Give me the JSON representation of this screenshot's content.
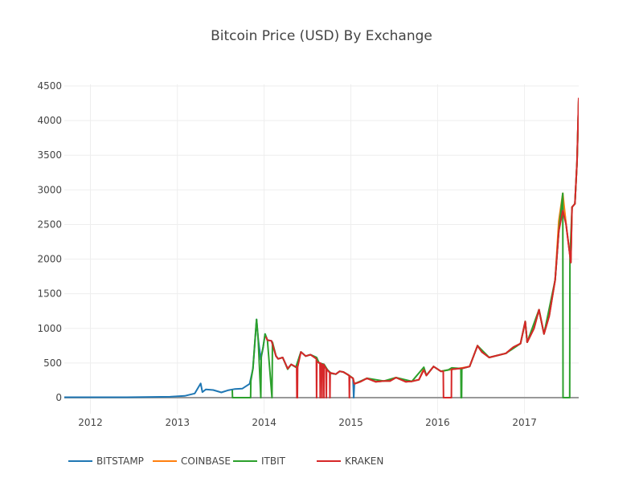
{
  "chart_data": {
    "type": "line",
    "title": "Bitcoin Price (USD) By Exchange",
    "xlabel": "",
    "ylabel": "",
    "xlim": [
      "2011-09-13",
      "2017-08-17"
    ],
    "ylim": [
      -250,
      4500
    ],
    "xticks": [
      "2012",
      "2013",
      "2014",
      "2015",
      "2016",
      "2017"
    ],
    "yticks": [
      0,
      500,
      1000,
      1500,
      2000,
      2500,
      3000,
      3500,
      4000,
      4500
    ],
    "grid": true,
    "legend_position": "bottom",
    "series": [
      {
        "name": "BITSTAMP",
        "color": "#1f77b4",
        "points": [
          [
            "2011-09-13",
            6
          ],
          [
            "2012-01-01",
            6
          ],
          [
            "2012-06-01",
            6
          ],
          [
            "2012-12-01",
            13
          ],
          [
            "2013-02-01",
            25
          ],
          [
            "2013-03-15",
            60
          ],
          [
            "2013-04-09",
            205
          ],
          [
            "2013-04-16",
            80
          ],
          [
            "2013-05-01",
            120
          ],
          [
            "2013-06-01",
            110
          ],
          [
            "2013-07-05",
            75
          ],
          [
            "2013-08-01",
            105
          ],
          [
            "2013-09-01",
            125
          ],
          [
            "2013-10-01",
            130
          ],
          [
            "2013-11-01",
            200
          ],
          [
            "2013-11-15",
            420
          ],
          [
            "2013-11-30",
            1130
          ],
          [
            "2013-12-07",
            850
          ],
          [
            "2013-12-18",
            550
          ],
          [
            "2013-12-28",
            730
          ],
          [
            "2014-01-05",
            920
          ],
          [
            "2014-01-15",
            830
          ],
          [
            "2014-02-01",
            820
          ],
          [
            "2014-02-20",
            600
          ],
          [
            "2014-03-01",
            560
          ],
          [
            "2014-03-20",
            580
          ],
          [
            "2014-04-10",
            420
          ],
          [
            "2014-04-25",
            480
          ],
          [
            "2014-05-15",
            440
          ],
          [
            "2014-06-05",
            660
          ],
          [
            "2014-06-25",
            600
          ],
          [
            "2014-07-15",
            620
          ],
          [
            "2014-08-10",
            580
          ],
          [
            "2014-08-20",
            500
          ],
          [
            "2014-09-10",
            480
          ],
          [
            "2014-09-25",
            400
          ],
          [
            "2014-10-10",
            350
          ],
          [
            "2014-10-30",
            340
          ],
          [
            "2014-11-15",
            380
          ],
          [
            "2014-12-01",
            370
          ],
          [
            "2014-12-20",
            330
          ],
          [
            "2015-01-10",
            280
          ],
          [
            "2015-01-13",
            0
          ],
          [
            "2015-01-16",
            200
          ],
          [
            "2015-02-10",
            230
          ],
          [
            "2015-03-10",
            280
          ],
          [
            "2015-04-15",
            230
          ],
          [
            "2015-05-20",
            240
          ],
          [
            "2015-06-15",
            240
          ],
          [
            "2015-07-10",
            290
          ],
          [
            "2015-08-20",
            230
          ],
          [
            "2015-09-15",
            235
          ],
          [
            "2015-10-15",
            260
          ],
          [
            "2015-11-04",
            420
          ],
          [
            "2015-11-15",
            320
          ],
          [
            "2015-12-15",
            450
          ],
          [
            "2016-01-15",
            380
          ],
          [
            "2016-02-15",
            400
          ],
          [
            "2016-03-15",
            415
          ],
          [
            "2016-04-15",
            425
          ],
          [
            "2016-05-15",
            450
          ],
          [
            "2016-06-17",
            750
          ],
          [
            "2016-07-05",
            660
          ],
          [
            "2016-08-05",
            580
          ],
          [
            "2016-09-10",
            610
          ],
          [
            "2016-10-15",
            640
          ],
          [
            "2016-11-15",
            730
          ],
          [
            "2016-12-15",
            780
          ],
          [
            "2017-01-04",
            1100
          ],
          [
            "2017-01-12",
            800
          ],
          [
            "2017-02-10",
            1000
          ],
          [
            "2017-03-03",
            1270
          ],
          [
            "2017-03-24",
            920
          ],
          [
            "2017-04-15",
            1180
          ],
          [
            "2017-05-10",
            1700
          ],
          [
            "2017-05-25",
            2400
          ],
          [
            "2017-06-11",
            2900
          ],
          [
            "2017-06-25",
            2500
          ],
          [
            "2017-07-15",
            1950
          ],
          [
            "2017-07-20",
            2750
          ],
          [
            "2017-08-01",
            2800
          ],
          [
            "2017-08-10",
            3400
          ],
          [
            "2017-08-17",
            4300
          ]
        ]
      },
      {
        "name": "COINBASE",
        "color": "#ff7f0e",
        "points": [
          [
            "2014-12-01",
            370
          ],
          [
            "2014-12-20",
            330
          ],
          [
            "2015-01-10",
            280
          ],
          [
            "2015-01-16",
            200
          ],
          [
            "2015-02-10",
            230
          ],
          [
            "2015-03-10",
            280
          ],
          [
            "2015-04-15",
            230
          ],
          [
            "2015-05-20",
            240
          ],
          [
            "2015-06-15",
            240
          ],
          [
            "2015-07-10",
            290
          ],
          [
            "2015-08-20",
            230
          ],
          [
            "2015-09-15",
            235
          ],
          [
            "2015-10-15",
            260
          ],
          [
            "2015-11-04",
            420
          ],
          [
            "2015-11-15",
            320
          ],
          [
            "2015-12-15",
            450
          ],
          [
            "2016-01-15",
            380
          ],
          [
            "2016-02-15",
            400
          ],
          [
            "2016-03-15",
            415
          ],
          [
            "2016-04-15",
            430
          ],
          [
            "2016-05-15",
            450
          ],
          [
            "2016-06-17",
            750
          ],
          [
            "2016-07-05",
            660
          ],
          [
            "2016-08-05",
            580
          ],
          [
            "2016-09-10",
            610
          ],
          [
            "2016-10-15",
            640
          ],
          [
            "2016-11-15",
            730
          ],
          [
            "2016-12-15",
            780
          ],
          [
            "2017-01-04",
            1100
          ],
          [
            "2017-01-12",
            800
          ],
          [
            "2017-02-10",
            1000
          ],
          [
            "2017-03-03",
            1270
          ],
          [
            "2017-03-24",
            920
          ],
          [
            "2017-04-15",
            1180
          ],
          [
            "2017-05-10",
            1700
          ],
          [
            "2017-05-25",
            2550
          ],
          [
            "2017-06-11",
            2950
          ],
          [
            "2017-06-25",
            2500
          ],
          [
            "2017-07-15",
            1950
          ],
          [
            "2017-07-20",
            2750
          ],
          [
            "2017-08-01",
            2800
          ],
          [
            "2017-08-10",
            3400
          ],
          [
            "2017-08-17",
            4300
          ]
        ]
      },
      {
        "name": "ITBIT",
        "color": "#2ca02c",
        "points": [
          [
            "2013-08-20",
            110
          ],
          [
            "2013-08-21",
            0
          ],
          [
            "2013-11-05",
            0
          ],
          [
            "2013-11-06",
            240
          ],
          [
            "2013-11-15",
            420
          ],
          [
            "2013-11-30",
            1130
          ],
          [
            "2013-12-07",
            850
          ],
          [
            "2013-12-18",
            0
          ],
          [
            "2013-12-20",
            600
          ],
          [
            "2013-12-28",
            730
          ],
          [
            "2014-01-05",
            920
          ],
          [
            "2014-01-15",
            830
          ],
          [
            "2014-02-03",
            0
          ],
          [
            "2014-02-05",
            800
          ],
          [
            "2014-02-20",
            600
          ],
          [
            "2014-03-01",
            560
          ],
          [
            "2014-03-20",
            580
          ],
          [
            "2014-04-10",
            410
          ],
          [
            "2014-04-25",
            480
          ],
          [
            "2014-05-15",
            440
          ],
          [
            "2014-06-05",
            660
          ],
          [
            "2014-06-25",
            600
          ],
          [
            "2014-07-15",
            620
          ],
          [
            "2014-08-10",
            580
          ],
          [
            "2014-08-20",
            500
          ],
          [
            "2014-09-10",
            480
          ],
          [
            "2014-09-25",
            400
          ],
          [
            "2014-10-10",
            350
          ],
          [
            "2014-10-30",
            340
          ],
          [
            "2014-11-15",
            380
          ],
          [
            "2014-12-01",
            370
          ],
          [
            "2014-12-20",
            330
          ],
          [
            "2015-01-10",
            280
          ],
          [
            "2015-01-16",
            200
          ],
          [
            "2015-03-10",
            280
          ],
          [
            "2015-05-20",
            240
          ],
          [
            "2015-07-10",
            290
          ],
          [
            "2015-09-15",
            235
          ],
          [
            "2015-11-04",
            440
          ],
          [
            "2015-11-15",
            320
          ],
          [
            "2015-12-15",
            450
          ],
          [
            "2016-01-15",
            380
          ],
          [
            "2016-02-15",
            400
          ],
          [
            "2016-03-01",
            430
          ],
          [
            "2016-04-08",
            420
          ],
          [
            "2016-04-09",
            0
          ],
          [
            "2016-04-11",
            0
          ],
          [
            "2016-04-12",
            420
          ],
          [
            "2016-05-15",
            450
          ],
          [
            "2016-06-17",
            750
          ],
          [
            "2016-08-05",
            580
          ],
          [
            "2016-10-15",
            640
          ],
          [
            "2016-12-15",
            780
          ],
          [
            "2017-01-04",
            1100
          ],
          [
            "2017-01-12",
            800
          ],
          [
            "2017-03-03",
            1270
          ],
          [
            "2017-03-24",
            920
          ],
          [
            "2017-05-10",
            1700
          ],
          [
            "2017-05-25",
            2400
          ],
          [
            "2017-06-11",
            2950
          ],
          [
            "2017-06-12",
            0
          ],
          [
            "2017-07-10",
            0
          ],
          [
            "2017-07-11",
            2000
          ],
          [
            "2017-07-20",
            2750
          ],
          [
            "2017-08-01",
            2800
          ],
          [
            "2017-08-10",
            3400
          ],
          [
            "2017-08-17",
            4300
          ]
        ]
      },
      {
        "name": "KRAKEN",
        "color": "#d62728",
        "points": [
          [
            "2014-01-08",
            880
          ],
          [
            "2014-01-15",
            830
          ],
          [
            "2014-02-01",
            820
          ],
          [
            "2014-02-20",
            600
          ],
          [
            "2014-03-01",
            560
          ],
          [
            "2014-03-20",
            580
          ],
          [
            "2014-04-10",
            420
          ],
          [
            "2014-04-25",
            480
          ],
          [
            "2014-05-18",
            440
          ],
          [
            "2014-05-19",
            0
          ],
          [
            "2014-05-21",
            0
          ],
          [
            "2014-05-22",
            440
          ],
          [
            "2014-06-05",
            660
          ],
          [
            "2014-06-25",
            600
          ],
          [
            "2014-07-15",
            620
          ],
          [
            "2014-08-09",
            560
          ],
          [
            "2014-08-10",
            0
          ],
          [
            "2014-08-11",
            520
          ],
          [
            "2014-08-24",
            500
          ],
          [
            "2014-08-25",
            0
          ],
          [
            "2014-08-26",
            500
          ],
          [
            "2014-09-01",
            480
          ],
          [
            "2014-09-02",
            0
          ],
          [
            "2014-09-03",
            470
          ],
          [
            "2014-09-09",
            480
          ],
          [
            "2014-09-10",
            0
          ],
          [
            "2014-09-11",
            460
          ],
          [
            "2014-09-19",
            420
          ],
          [
            "2014-09-20",
            0
          ],
          [
            "2014-09-21",
            410
          ],
          [
            "2014-10-04",
            360
          ],
          [
            "2014-10-05",
            0
          ],
          [
            "2014-10-06",
            360
          ],
          [
            "2014-10-30",
            340
          ],
          [
            "2014-11-15",
            380
          ],
          [
            "2014-12-01",
            370
          ],
          [
            "2014-12-25",
            320
          ],
          [
            "2014-12-26",
            0
          ],
          [
            "2014-12-27",
            310
          ],
          [
            "2015-01-10",
            280
          ],
          [
            "2015-01-16",
            200
          ],
          [
            "2015-02-10",
            230
          ],
          [
            "2015-03-10",
            280
          ],
          [
            "2015-04-15",
            230
          ],
          [
            "2015-05-20",
            240
          ],
          [
            "2015-06-15",
            240
          ],
          [
            "2015-07-10",
            290
          ],
          [
            "2015-08-20",
            230
          ],
          [
            "2015-09-15",
            235
          ],
          [
            "2015-10-15",
            260
          ],
          [
            "2015-11-04",
            400
          ],
          [
            "2015-11-15",
            320
          ],
          [
            "2015-12-15",
            450
          ],
          [
            "2016-01-15",
            380
          ],
          [
            "2016-01-25",
            380
          ],
          [
            "2016-01-26",
            0
          ],
          [
            "2016-02-28",
            0
          ],
          [
            "2016-02-29",
            410
          ],
          [
            "2016-03-15",
            415
          ],
          [
            "2016-04-15",
            425
          ],
          [
            "2016-05-15",
            450
          ],
          [
            "2016-06-17",
            750
          ],
          [
            "2016-07-05",
            660
          ],
          [
            "2016-08-05",
            580
          ],
          [
            "2016-09-10",
            610
          ],
          [
            "2016-10-15",
            640
          ],
          [
            "2016-11-15",
            730
          ],
          [
            "2016-12-15",
            780
          ],
          [
            "2017-01-04",
            1100
          ],
          [
            "2017-01-12",
            800
          ],
          [
            "2017-02-10",
            1000
          ],
          [
            "2017-03-03",
            1270
          ],
          [
            "2017-03-24",
            920
          ],
          [
            "2017-04-15",
            1180
          ],
          [
            "2017-05-10",
            1700
          ],
          [
            "2017-05-25",
            2400
          ],
          [
            "2017-06-11",
            2700
          ],
          [
            "2017-06-25",
            2500
          ],
          [
            "2017-07-15",
            1950
          ],
          [
            "2017-07-20",
            2750
          ],
          [
            "2017-08-01",
            2800
          ],
          [
            "2017-08-10",
            3400
          ],
          [
            "2017-08-17",
            4330
          ]
        ]
      }
    ]
  }
}
